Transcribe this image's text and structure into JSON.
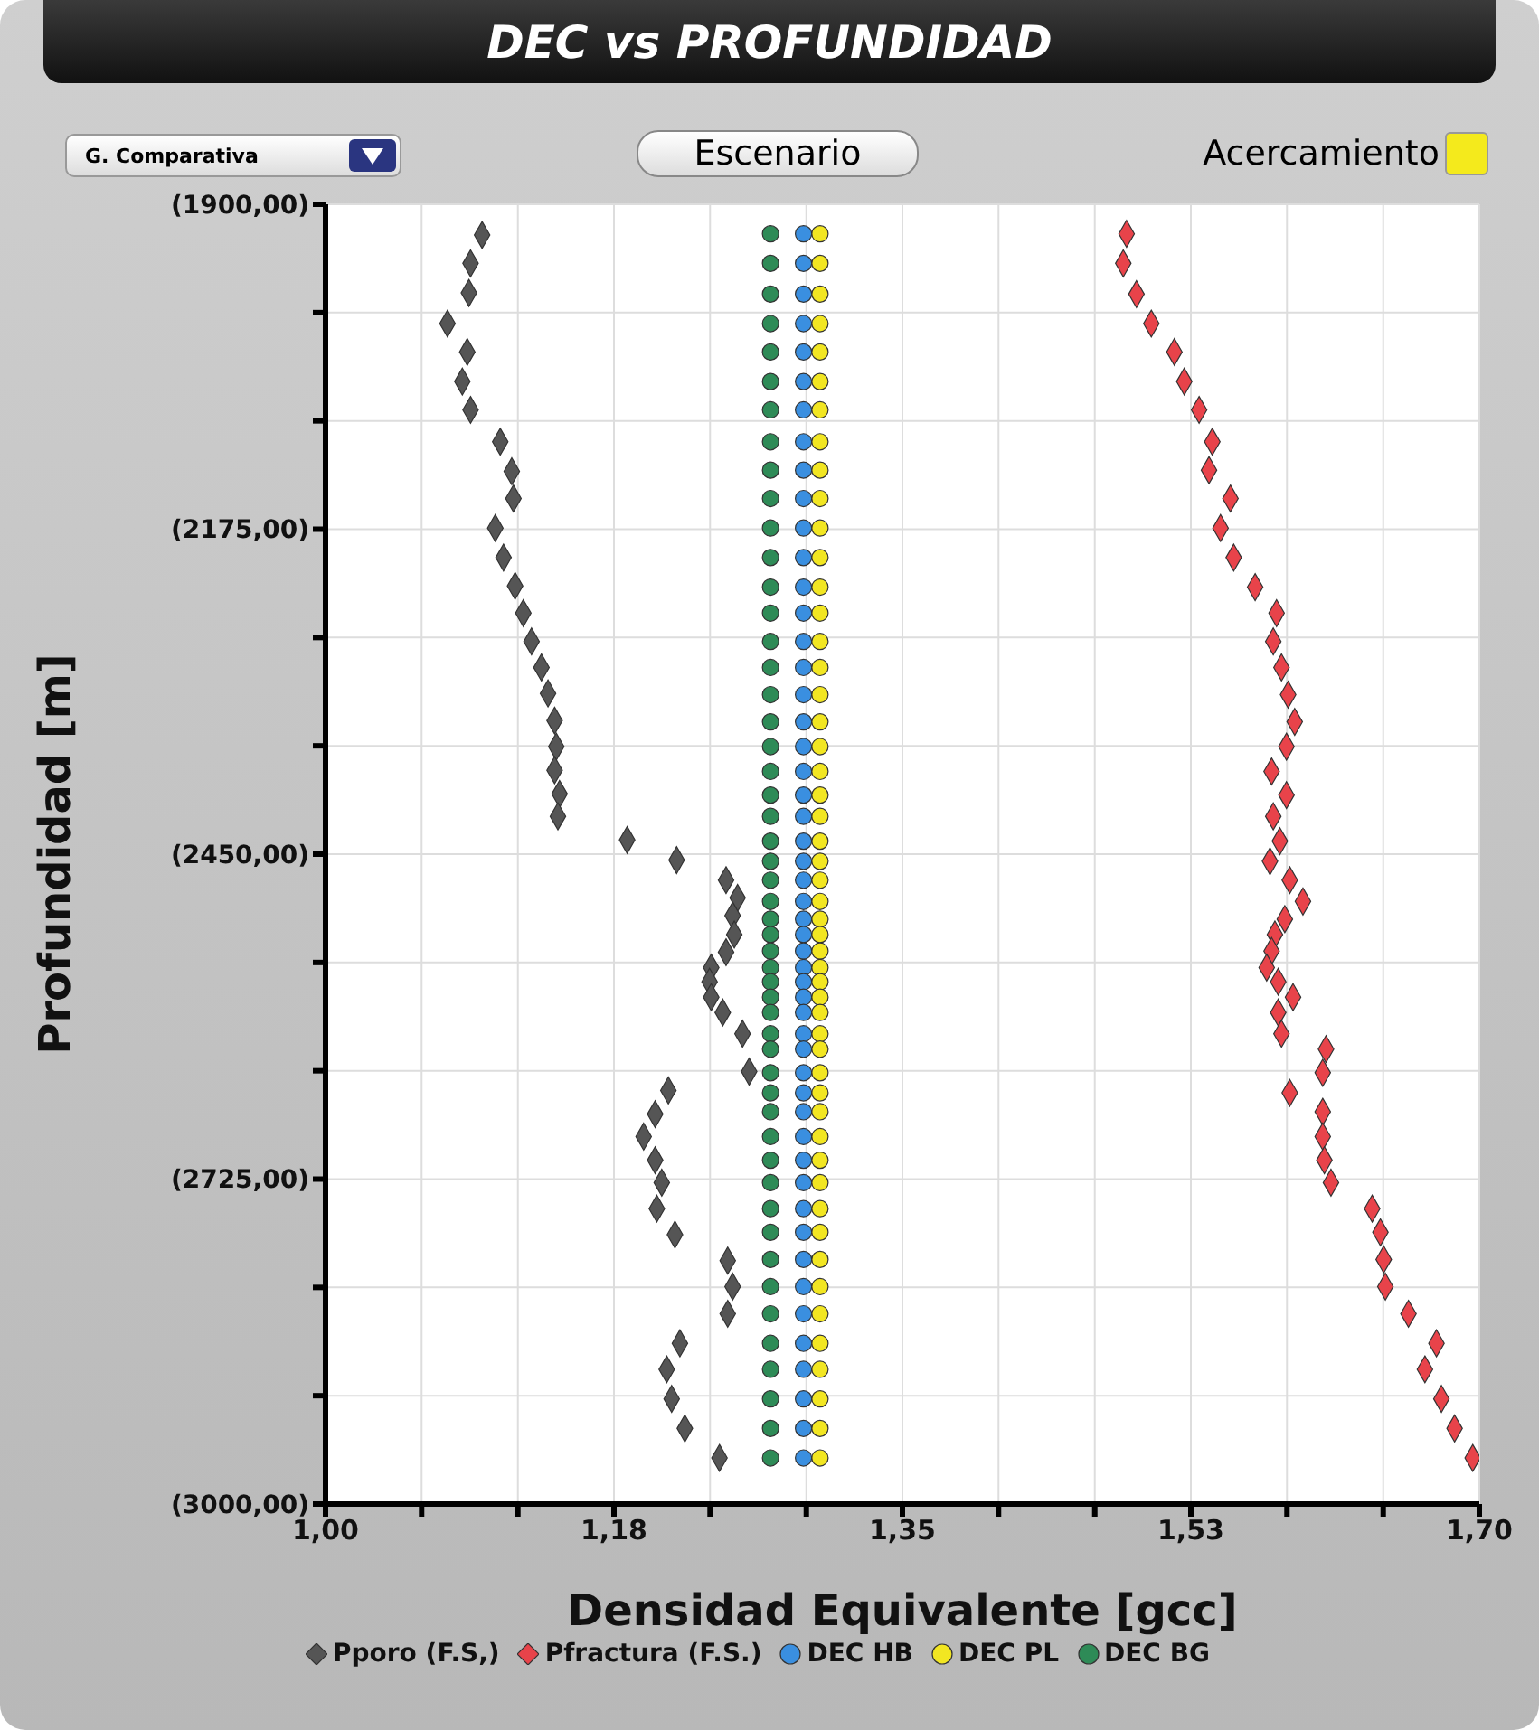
{
  "chart_data": {
    "type": "scatter",
    "title": "DEC vs PROFUNDIDAD",
    "xlabel": "Densidad Equivalente [gcc]",
    "ylabel": "Profundidad [m]",
    "annotations": [
      "G. Comparativa",
      "Escenario",
      "Acercamiento"
    ],
    "xlim": [
      1.0,
      1.7
    ],
    "xticks": [
      {
        "value": 1.0,
        "label": "1,00"
      },
      {
        "value": 1.0583,
        "label": null
      },
      {
        "value": 1.1167,
        "label": null
      },
      {
        "value": 1.175,
        "label": "1,18"
      },
      {
        "value": 1.2333,
        "label": null
      },
      {
        "value": 1.2917,
        "label": null
      },
      {
        "value": 1.35,
        "label": "1,35"
      },
      {
        "value": 1.4083,
        "label": null
      },
      {
        "value": 1.4667,
        "label": null
      },
      {
        "value": 1.525,
        "label": "1,53"
      },
      {
        "value": 1.5833,
        "label": null
      },
      {
        "value": 1.6417,
        "label": null
      },
      {
        "value": 1.7,
        "label": "1,70"
      }
    ],
    "ylim": [
      3000,
      1900
    ],
    "yticks": [
      {
        "value": 1900,
        "label": "(1900,00)"
      },
      {
        "value": 1991.67,
        "label": null
      },
      {
        "value": 2083.33,
        "label": null
      },
      {
        "value": 2175,
        "label": "(2175,00)"
      },
      {
        "value": 2266.67,
        "label": null
      },
      {
        "value": 2358.33,
        "label": null
      },
      {
        "value": 2450,
        "label": "(2450,00)"
      },
      {
        "value": 2541.67,
        "label": null
      },
      {
        "value": 2633.33,
        "label": null
      },
      {
        "value": 2725,
        "label": "(2725,00)"
      },
      {
        "value": 2816.67,
        "label": null
      },
      {
        "value": 2908.33,
        "label": null
      },
      {
        "value": 3000,
        "label": "(3000,00)"
      }
    ],
    "grid": true,
    "legend": "bottom",
    "series": [
      {
        "name": "Pporo (F.S,)",
        "color": "#555555",
        "marker": "diamond",
        "x": [
          1.095,
          1.088,
          1.087,
          1.074,
          1.086,
          1.083,
          1.088,
          1.106,
          1.113,
          1.114,
          1.103,
          1.108,
          1.115,
          1.12,
          1.125,
          1.131,
          1.135,
          1.139,
          1.14,
          1.139,
          1.142,
          1.141,
          1.183,
          1.213,
          1.243,
          1.25,
          1.247,
          1.248,
          1.243,
          1.234,
          1.233,
          1.234,
          1.241,
          1.253,
          1.257,
          1.208,
          1.2,
          1.193,
          1.2,
          1.204,
          1.201,
          1.212,
          1.244,
          1.247,
          1.244,
          1.215,
          1.207,
          1.21,
          1.218,
          1.239
        ],
        "values": [
          1926,
          1950,
          1975,
          2001,
          2025,
          2050,
          2074,
          2101,
          2126,
          2149,
          2174,
          2199,
          2223,
          2246,
          2270,
          2292,
          2314,
          2337,
          2359,
          2379,
          2399,
          2418,
          2438,
          2455,
          2472,
          2487,
          2502,
          2518,
          2533,
          2546,
          2558,
          2571,
          2584,
          2602,
          2634,
          2650,
          2670,
          2689,
          2709,
          2728,
          2750,
          2772,
          2794,
          2816,
          2839,
          2864,
          2886,
          2911,
          2936,
          2961
        ]
      },
      {
        "name": "Pfractura (F.S.)",
        "color": "#e8434a",
        "marker": "diamond",
        "x": [
          1.486,
          1.484,
          1.492,
          1.501,
          1.515,
          1.521,
          1.53,
          1.538,
          1.536,
          1.549,
          1.543,
          1.551,
          1.564,
          1.577,
          1.575,
          1.58,
          1.584,
          1.588,
          1.583,
          1.574,
          1.583,
          1.575,
          1.579,
          1.573,
          1.585,
          1.593,
          1.582,
          1.576,
          1.574,
          1.571,
          1.578,
          1.587,
          1.578,
          1.58,
          1.607,
          1.605,
          1.585,
          1.605,
          1.605,
          1.606,
          1.61,
          1.635,
          1.64,
          1.642,
          1.643,
          1.657,
          1.674,
          1.667,
          1.677,
          1.685,
          1.696
        ],
        "values": [
          1925,
          1950,
          1976,
          2001,
          2025,
          2050,
          2074,
          2101,
          2125,
          2149,
          2174,
          2199,
          2224,
          2246,
          2270,
          2292,
          2315,
          2338,
          2359,
          2380,
          2400,
          2418,
          2439,
          2456,
          2472,
          2490,
          2505,
          2518,
          2532,
          2546,
          2558,
          2571,
          2584,
          2602,
          2615,
          2635,
          2652,
          2668,
          2689,
          2709,
          2728,
          2750,
          2770,
          2793,
          2816,
          2839,
          2864,
          2886,
          2911,
          2936,
          2961
        ]
      },
      {
        "name": "DEC HB",
        "color": "#3a8fe0",
        "marker": "circle",
        "x": [
          1.29,
          1.29,
          1.29,
          1.29,
          1.29,
          1.29,
          1.29,
          1.29,
          1.29,
          1.29,
          1.29,
          1.29,
          1.29,
          1.29,
          1.29,
          1.29,
          1.29,
          1.29,
          1.29,
          1.29,
          1.29,
          1.29,
          1.29,
          1.29,
          1.29,
          1.29,
          1.29,
          1.29,
          1.29,
          1.29,
          1.29,
          1.29,
          1.29,
          1.29,
          1.29,
          1.29,
          1.29,
          1.29,
          1.29,
          1.29,
          1.29,
          1.29,
          1.29,
          1.29,
          1.29,
          1.29,
          1.29,
          1.29,
          1.29,
          1.29,
          1.29
        ],
        "values": [
          1925,
          1950,
          1976,
          2001,
          2025,
          2050,
          2074,
          2101,
          2125,
          2149,
          2174,
          2199,
          2224,
          2246,
          2270,
          2292,
          2315,
          2338,
          2359,
          2380,
          2400,
          2418,
          2439,
          2456,
          2472,
          2490,
          2505,
          2518,
          2532,
          2546,
          2558,
          2571,
          2584,
          2602,
          2615,
          2635,
          2652,
          2668,
          2689,
          2709,
          2728,
          2750,
          2770,
          2793,
          2816,
          2839,
          2864,
          2886,
          2911,
          2936,
          2961
        ]
      },
      {
        "name": "DEC PL",
        "color": "#f2e622",
        "marker": "circle",
        "x": [
          1.3,
          1.3,
          1.3,
          1.3,
          1.3,
          1.3,
          1.3,
          1.3,
          1.3,
          1.3,
          1.3,
          1.3,
          1.3,
          1.3,
          1.3,
          1.3,
          1.3,
          1.3,
          1.3,
          1.3,
          1.3,
          1.3,
          1.3,
          1.3,
          1.3,
          1.3,
          1.3,
          1.3,
          1.3,
          1.3,
          1.3,
          1.3,
          1.3,
          1.3,
          1.3,
          1.3,
          1.3,
          1.3,
          1.3,
          1.3,
          1.3,
          1.3,
          1.3,
          1.3,
          1.3,
          1.3,
          1.3,
          1.3,
          1.3,
          1.3,
          1.3
        ],
        "values": [
          1925,
          1950,
          1976,
          2001,
          2025,
          2050,
          2074,
          2101,
          2125,
          2149,
          2174,
          2199,
          2224,
          2246,
          2270,
          2292,
          2315,
          2338,
          2359,
          2380,
          2400,
          2418,
          2439,
          2456,
          2472,
          2490,
          2505,
          2518,
          2532,
          2546,
          2558,
          2571,
          2584,
          2602,
          2615,
          2635,
          2652,
          2668,
          2689,
          2709,
          2728,
          2750,
          2770,
          2793,
          2816,
          2839,
          2864,
          2886,
          2911,
          2936,
          2961
        ]
      },
      {
        "name": "DEC BG",
        "color": "#2e8b57",
        "marker": "circle",
        "x": [
          1.27,
          1.27,
          1.27,
          1.27,
          1.27,
          1.27,
          1.27,
          1.27,
          1.27,
          1.27,
          1.27,
          1.27,
          1.27,
          1.27,
          1.27,
          1.27,
          1.27,
          1.27,
          1.27,
          1.27,
          1.27,
          1.27,
          1.27,
          1.27,
          1.27,
          1.27,
          1.27,
          1.27,
          1.27,
          1.27,
          1.27,
          1.27,
          1.27,
          1.27,
          1.27,
          1.27,
          1.27,
          1.27,
          1.27,
          1.27,
          1.27,
          1.27,
          1.27,
          1.27,
          1.27,
          1.27,
          1.27,
          1.27,
          1.27,
          1.27,
          1.27
        ],
        "values": [
          1925,
          1950,
          1976,
          2001,
          2025,
          2050,
          2074,
          2101,
          2125,
          2149,
          2174,
          2199,
          2224,
          2246,
          2270,
          2292,
          2315,
          2338,
          2359,
          2380,
          2400,
          2418,
          2439,
          2456,
          2472,
          2490,
          2505,
          2518,
          2532,
          2546,
          2558,
          2571,
          2584,
          2602,
          2615,
          2635,
          2652,
          2668,
          2689,
          2709,
          2728,
          2750,
          2770,
          2793,
          2816,
          2839,
          2864,
          2886,
          2911,
          2936,
          2961
        ]
      }
    ]
  }
}
